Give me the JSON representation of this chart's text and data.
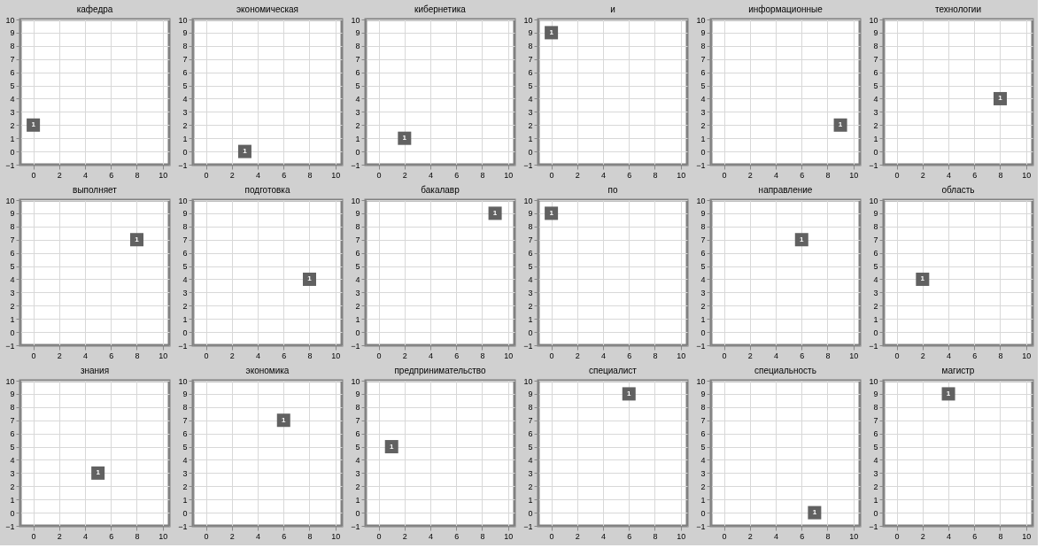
{
  "chart_data": [
    {
      "type": "scatter",
      "title": "кафедра",
      "x": [
        0
      ],
      "values": [
        2
      ],
      "annotations": [
        {
          "text": "1",
          "x": 0,
          "y": 2
        }
      ],
      "color": "#616161",
      "marker": "square",
      "xlim": [
        -1,
        10.5
      ],
      "ylim": [
        -1,
        10
      ],
      "xticks": [
        0,
        2,
        4,
        6,
        8,
        10
      ],
      "yticks": [
        -1,
        0,
        1,
        2,
        3,
        4,
        5,
        6,
        7,
        8,
        9,
        10
      ],
      "grid": true
    },
    {
      "type": "scatter",
      "title": "экономическая",
      "x": [
        3
      ],
      "values": [
        0
      ],
      "annotations": [
        {
          "text": "1",
          "x": 3,
          "y": 0
        }
      ],
      "color": "#616161",
      "marker": "square",
      "xlim": [
        -1,
        10.5
      ],
      "ylim": [
        -1,
        10
      ],
      "xticks": [
        0,
        2,
        4,
        6,
        8,
        10
      ],
      "yticks": [
        -1,
        0,
        1,
        2,
        3,
        4,
        5,
        6,
        7,
        8,
        9,
        10
      ],
      "grid": true
    },
    {
      "type": "scatter",
      "title": "кибернетика",
      "x": [
        2
      ],
      "values": [
        1
      ],
      "annotations": [
        {
          "text": "1",
          "x": 2,
          "y": 1
        }
      ],
      "color": "#616161",
      "marker": "square",
      "xlim": [
        -1,
        10.5
      ],
      "ylim": [
        -1,
        10
      ],
      "xticks": [
        0,
        2,
        4,
        6,
        8,
        10
      ],
      "yticks": [
        -1,
        0,
        1,
        2,
        3,
        4,
        5,
        6,
        7,
        8,
        9,
        10
      ],
      "grid": true
    },
    {
      "type": "scatter",
      "title": "и",
      "x": [
        0
      ],
      "values": [
        9
      ],
      "annotations": [
        {
          "text": "1",
          "x": 0,
          "y": 9
        }
      ],
      "color": "#616161",
      "marker": "square",
      "xlim": [
        -1,
        10.5
      ],
      "ylim": [
        -1,
        10
      ],
      "xticks": [
        0,
        2,
        4,
        6,
        8,
        10
      ],
      "yticks": [
        -1,
        0,
        1,
        2,
        3,
        4,
        5,
        6,
        7,
        8,
        9,
        10
      ],
      "grid": true
    },
    {
      "type": "scatter",
      "title": "информационные",
      "x": [
        9
      ],
      "values": [
        2
      ],
      "annotations": [
        {
          "text": "1",
          "x": 9,
          "y": 2
        }
      ],
      "color": "#616161",
      "marker": "square",
      "xlim": [
        -1,
        10.5
      ],
      "ylim": [
        -1,
        10
      ],
      "xticks": [
        0,
        2,
        4,
        6,
        8,
        10
      ],
      "yticks": [
        -1,
        0,
        1,
        2,
        3,
        4,
        5,
        6,
        7,
        8,
        9,
        10
      ],
      "grid": true
    },
    {
      "type": "scatter",
      "title": "технологии",
      "x": [
        8
      ],
      "values": [
        4
      ],
      "annotations": [
        {
          "text": "1",
          "x": 8,
          "y": 4
        }
      ],
      "color": "#616161",
      "marker": "square",
      "xlim": [
        -1,
        10.5
      ],
      "ylim": [
        -1,
        10
      ],
      "xticks": [
        0,
        2,
        4,
        6,
        8,
        10
      ],
      "yticks": [
        -1,
        0,
        1,
        2,
        3,
        4,
        5,
        6,
        7,
        8,
        9,
        10
      ],
      "grid": true
    },
    {
      "type": "scatter",
      "title": "выполняет",
      "x": [
        8
      ],
      "values": [
        7
      ],
      "annotations": [
        {
          "text": "1",
          "x": 8,
          "y": 7
        }
      ],
      "color": "#616161",
      "marker": "square",
      "xlim": [
        -1,
        10.5
      ],
      "ylim": [
        -1,
        10
      ],
      "xticks": [
        0,
        2,
        4,
        6,
        8,
        10
      ],
      "yticks": [
        -1,
        0,
        1,
        2,
        3,
        4,
        5,
        6,
        7,
        8,
        9,
        10
      ],
      "grid": true
    },
    {
      "type": "scatter",
      "title": "подготовка",
      "x": [
        8
      ],
      "values": [
        4
      ],
      "annotations": [
        {
          "text": "1",
          "x": 8,
          "y": 4
        }
      ],
      "color": "#616161",
      "marker": "square",
      "xlim": [
        -1,
        10.5
      ],
      "ylim": [
        -1,
        10
      ],
      "xticks": [
        0,
        2,
        4,
        6,
        8,
        10
      ],
      "yticks": [
        -1,
        0,
        1,
        2,
        3,
        4,
        5,
        6,
        7,
        8,
        9,
        10
      ],
      "grid": true
    },
    {
      "type": "scatter",
      "title": "бакалавр",
      "x": [
        9
      ],
      "values": [
        9
      ],
      "annotations": [
        {
          "text": "1",
          "x": 9,
          "y": 9
        }
      ],
      "color": "#616161",
      "marker": "square",
      "xlim": [
        -1,
        10.5
      ],
      "ylim": [
        -1,
        10
      ],
      "xticks": [
        0,
        2,
        4,
        6,
        8,
        10
      ],
      "yticks": [
        -1,
        0,
        1,
        2,
        3,
        4,
        5,
        6,
        7,
        8,
        9,
        10
      ],
      "grid": true
    },
    {
      "type": "scatter",
      "title": "по",
      "x": [
        0
      ],
      "values": [
        9
      ],
      "annotations": [
        {
          "text": "1",
          "x": 0,
          "y": 9
        }
      ],
      "color": "#616161",
      "marker": "square",
      "xlim": [
        -1,
        10.5
      ],
      "ylim": [
        -1,
        10
      ],
      "xticks": [
        0,
        2,
        4,
        6,
        8,
        10
      ],
      "yticks": [
        -1,
        0,
        1,
        2,
        3,
        4,
        5,
        6,
        7,
        8,
        9,
        10
      ],
      "grid": true
    },
    {
      "type": "scatter",
      "title": "направление",
      "x": [
        6
      ],
      "values": [
        7
      ],
      "annotations": [
        {
          "text": "1",
          "x": 6,
          "y": 7
        }
      ],
      "color": "#616161",
      "marker": "square",
      "xlim": [
        -1,
        10.5
      ],
      "ylim": [
        -1,
        10
      ],
      "xticks": [
        0,
        2,
        4,
        6,
        8,
        10
      ],
      "yticks": [
        -1,
        0,
        1,
        2,
        3,
        4,
        5,
        6,
        7,
        8,
        9,
        10
      ],
      "grid": true
    },
    {
      "type": "scatter",
      "title": "область",
      "x": [
        2
      ],
      "values": [
        4
      ],
      "annotations": [
        {
          "text": "1",
          "x": 2,
          "y": 4
        }
      ],
      "color": "#616161",
      "marker": "square",
      "xlim": [
        -1,
        10.5
      ],
      "ylim": [
        -1,
        10
      ],
      "xticks": [
        0,
        2,
        4,
        6,
        8,
        10
      ],
      "yticks": [
        -1,
        0,
        1,
        2,
        3,
        4,
        5,
        6,
        7,
        8,
        9,
        10
      ],
      "grid": true
    },
    {
      "type": "scatter",
      "title": "знания",
      "x": [
        5
      ],
      "values": [
        3
      ],
      "annotations": [
        {
          "text": "1",
          "x": 5,
          "y": 3
        }
      ],
      "color": "#616161",
      "marker": "square",
      "xlim": [
        -1,
        10.5
      ],
      "ylim": [
        -1,
        10
      ],
      "xticks": [
        0,
        2,
        4,
        6,
        8,
        10
      ],
      "yticks": [
        -1,
        0,
        1,
        2,
        3,
        4,
        5,
        6,
        7,
        8,
        9,
        10
      ],
      "grid": true
    },
    {
      "type": "scatter",
      "title": "экономика",
      "x": [
        6
      ],
      "values": [
        7
      ],
      "annotations": [
        {
          "text": "1",
          "x": 6,
          "y": 7
        }
      ],
      "color": "#616161",
      "marker": "square",
      "xlim": [
        -1,
        10.5
      ],
      "ylim": [
        -1,
        10
      ],
      "xticks": [
        0,
        2,
        4,
        6,
        8,
        10
      ],
      "yticks": [
        -1,
        0,
        1,
        2,
        3,
        4,
        5,
        6,
        7,
        8,
        9,
        10
      ],
      "grid": true
    },
    {
      "type": "scatter",
      "title": "предпринимательство",
      "x": [
        1
      ],
      "values": [
        5
      ],
      "annotations": [
        {
          "text": "1",
          "x": 1,
          "y": 5
        }
      ],
      "color": "#616161",
      "marker": "square",
      "xlim": [
        -1,
        10.5
      ],
      "ylim": [
        -1,
        10
      ],
      "xticks": [
        0,
        2,
        4,
        6,
        8,
        10
      ],
      "yticks": [
        -1,
        0,
        1,
        2,
        3,
        4,
        5,
        6,
        7,
        8,
        9,
        10
      ],
      "grid": true
    },
    {
      "type": "scatter",
      "title": "специалист",
      "x": [
        6
      ],
      "values": [
        9
      ],
      "annotations": [
        {
          "text": "1",
          "x": 6,
          "y": 9
        }
      ],
      "color": "#616161",
      "marker": "square",
      "xlim": [
        -1,
        10.5
      ],
      "ylim": [
        -1,
        10
      ],
      "xticks": [
        0,
        2,
        4,
        6,
        8,
        10
      ],
      "yticks": [
        -1,
        0,
        1,
        2,
        3,
        4,
        5,
        6,
        7,
        8,
        9,
        10
      ],
      "grid": true
    },
    {
      "type": "scatter",
      "title": "специальность",
      "x": [
        7
      ],
      "values": [
        0
      ],
      "annotations": [
        {
          "text": "1",
          "x": 7,
          "y": 0
        }
      ],
      "color": "#616161",
      "marker": "square",
      "xlim": [
        -1,
        10.5
      ],
      "ylim": [
        -1,
        10
      ],
      "xticks": [
        0,
        2,
        4,
        6,
        8,
        10
      ],
      "yticks": [
        -1,
        0,
        1,
        2,
        3,
        4,
        5,
        6,
        7,
        8,
        9,
        10
      ],
      "grid": true
    },
    {
      "type": "scatter",
      "title": "магистр",
      "x": [
        4
      ],
      "values": [
        9
      ],
      "annotations": [
        {
          "text": "1",
          "x": 4,
          "y": 9
        }
      ],
      "color": "#616161",
      "marker": "square",
      "xlim": [
        -1,
        10.5
      ],
      "ylim": [
        -1,
        10
      ],
      "xticks": [
        0,
        2,
        4,
        6,
        8,
        10
      ],
      "yticks": [
        -1,
        0,
        1,
        2,
        3,
        4,
        5,
        6,
        7,
        8,
        9,
        10
      ],
      "grid": true
    }
  ]
}
